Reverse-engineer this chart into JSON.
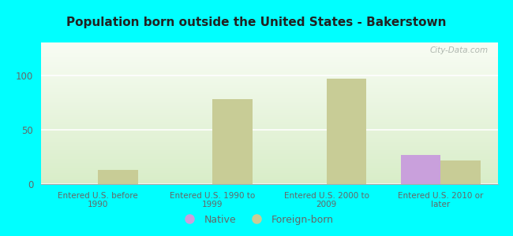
{
  "title": "Population born outside the United States - Bakerstown",
  "categories": [
    "Entered U.S. before\n1990",
    "Entered U.S. 1990 to\n1999",
    "Entered U.S. 2000 to\n2009",
    "Entered U.S. 2010 or\nlater"
  ],
  "native_values": [
    0,
    0,
    0,
    27
  ],
  "foreign_born_values": [
    13,
    78,
    97,
    22
  ],
  "native_color": "#c9a0dc",
  "foreign_born_color": "#c8cc96",
  "ylim": [
    0,
    130
  ],
  "yticks": [
    0,
    50,
    100
  ],
  "background_color": "#00ffff",
  "grad_top": "#f8fcf4",
  "grad_bottom": "#d8edc8",
  "bar_width": 0.35,
  "watermark": "City-Data.com",
  "legend_native": "Native",
  "legend_foreign": "Foreign-born",
  "title_color": "#222222",
  "tick_color": "#666666"
}
